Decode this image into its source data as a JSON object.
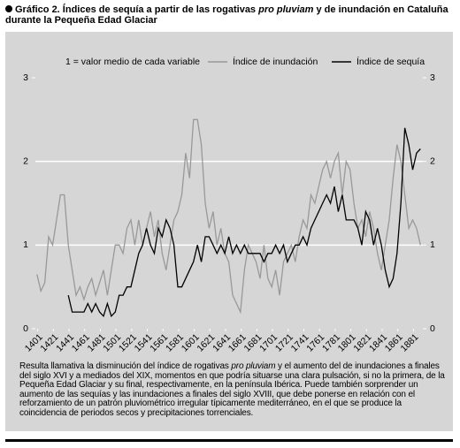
{
  "chart_data": {
    "type": "line",
    "title": [
      "Gráfico 2. Índices de sequía a partir de las rogativas ",
      "pro pluviam",
      " y de inundación en Cataluña durante la Pequeña Edad Glaciar"
    ],
    "note": "1 = valor medio de cada variable",
    "caption": [
      "Resulta llamativa la disminución del índice de rogativas ",
      "pro pluviam",
      " y el aumento del de inundaciones a finales del siglo XVI y a mediados del XIX, momentos en que podría situarse una clara pulsación, si no la primera, de la Pequeña Edad Glaciar y su final, respectivamente, en la península Ibérica. Puede también sorprender un aumento de las sequías y las inundaciones a finales del siglo XVIII, que debe ponerse en relación con el reforzamiento de un patrón pluviométrico irregular típicamente mediterráneo, en el que se produce la coincidencia de periodos secos y precipitaciones torrenciales."
    ],
    "x": [
      1400,
      1405,
      1410,
      1415,
      1420,
      1425,
      1430,
      1435,
      1440,
      1445,
      1450,
      1455,
      1460,
      1465,
      1470,
      1475,
      1480,
      1485,
      1490,
      1495,
      1500,
      1505,
      1510,
      1515,
      1520,
      1525,
      1530,
      1535,
      1540,
      1545,
      1550,
      1555,
      1560,
      1565,
      1570,
      1575,
      1580,
      1585,
      1590,
      1595,
      1600,
      1605,
      1610,
      1615,
      1620,
      1625,
      1630,
      1635,
      1640,
      1645,
      1650,
      1655,
      1660,
      1665,
      1670,
      1675,
      1680,
      1685,
      1690,
      1695,
      1700,
      1705,
      1710,
      1715,
      1720,
      1725,
      1730,
      1735,
      1740,
      1745,
      1750,
      1755,
      1760,
      1765,
      1770,
      1775,
      1780,
      1785,
      1790,
      1795,
      1800,
      1805,
      1810,
      1815,
      1820,
      1825,
      1830,
      1835,
      1840,
      1845,
      1850,
      1855,
      1860,
      1865,
      1870,
      1875,
      1880,
      1885,
      1890
    ],
    "series": [
      {
        "name": "Índice de inundación",
        "color": "#999999",
        "values": [
          0.65,
          0.45,
          0.55,
          1.1,
          1.0,
          1.3,
          1.6,
          1.6,
          1.0,
          0.7,
          0.4,
          0.5,
          0.35,
          0.5,
          0.6,
          0.4,
          0.55,
          0.7,
          0.4,
          0.7,
          1.0,
          1.0,
          0.9,
          1.2,
          1.3,
          1.0,
          1.3,
          1.0,
          1.2,
          1.4,
          1.1,
          1.3,
          0.9,
          0.7,
          1.0,
          1.3,
          1.4,
          1.6,
          2.1,
          1.8,
          2.5,
          2.5,
          2.2,
          1.5,
          1.2,
          1.4,
          1.0,
          1.2,
          0.9,
          0.8,
          0.4,
          0.3,
          0.2,
          0.7,
          1.0,
          0.9,
          0.8,
          0.6,
          1.0,
          0.6,
          0.5,
          0.7,
          0.4,
          0.8,
          0.9,
          1.0,
          0.8,
          1.1,
          1.3,
          1.2,
          1.6,
          1.5,
          1.7,
          1.9,
          2.0,
          1.8,
          2.0,
          2.1,
          1.6,
          2.0,
          1.9,
          1.5,
          1.2,
          1.3,
          1.1,
          1.4,
          1.2,
          0.9,
          0.7,
          1.0,
          1.3,
          1.8,
          2.2,
          2.0,
          1.6,
          1.2,
          1.3,
          1.2,
          1.0
        ]
      },
      {
        "name": "Índice de sequía",
        "color": "#000000",
        "values": [
          null,
          null,
          null,
          null,
          null,
          null,
          null,
          null,
          0.4,
          0.2,
          0.2,
          0.2,
          0.2,
          0.3,
          0.2,
          0.3,
          0.2,
          0.15,
          0.3,
          0.15,
          0.2,
          0.4,
          0.4,
          0.5,
          0.5,
          0.7,
          0.9,
          1.0,
          1.2,
          1.0,
          0.9,
          1.2,
          1.1,
          1.3,
          1.2,
          1.0,
          0.5,
          0.5,
          0.6,
          0.7,
          0.8,
          1.0,
          0.8,
          1.1,
          1.1,
          1.0,
          0.9,
          1.0,
          0.9,
          1.1,
          0.9,
          1.0,
          0.9,
          1.0,
          0.9,
          0.9,
          0.9,
          0.9,
          0.8,
          0.9,
          0.9,
          1.0,
          0.9,
          1.0,
          0.8,
          0.9,
          1.0,
          1.0,
          1.1,
          1.0,
          1.2,
          1.3,
          1.4,
          1.5,
          1.6,
          1.5,
          1.7,
          1.4,
          1.6,
          1.3,
          1.3,
          1.3,
          1.2,
          1.0,
          1.4,
          1.3,
          1.0,
          1.2,
          1.0,
          0.7,
          0.5,
          0.6,
          0.9,
          1.5,
          2.4,
          2.2,
          1.9,
          2.1,
          2.15
        ]
      }
    ],
    "xlim": [
      1398,
      1893
    ],
    "xticks": [
      1401,
      1421,
      1441,
      1461,
      1481,
      1501,
      1521,
      1541,
      1561,
      1581,
      1601,
      1621,
      1641,
      1661,
      1681,
      1701,
      1721,
      1741,
      1761,
      1781,
      1801,
      1821,
      1841,
      1861,
      1881
    ],
    "ylim": [
      0,
      3
    ],
    "yticks": [
      0,
      1,
      2,
      3
    ],
    "y2lim": [
      0,
      3
    ],
    "y2ticks": [
      0,
      1,
      2,
      3
    ],
    "grid": true
  }
}
